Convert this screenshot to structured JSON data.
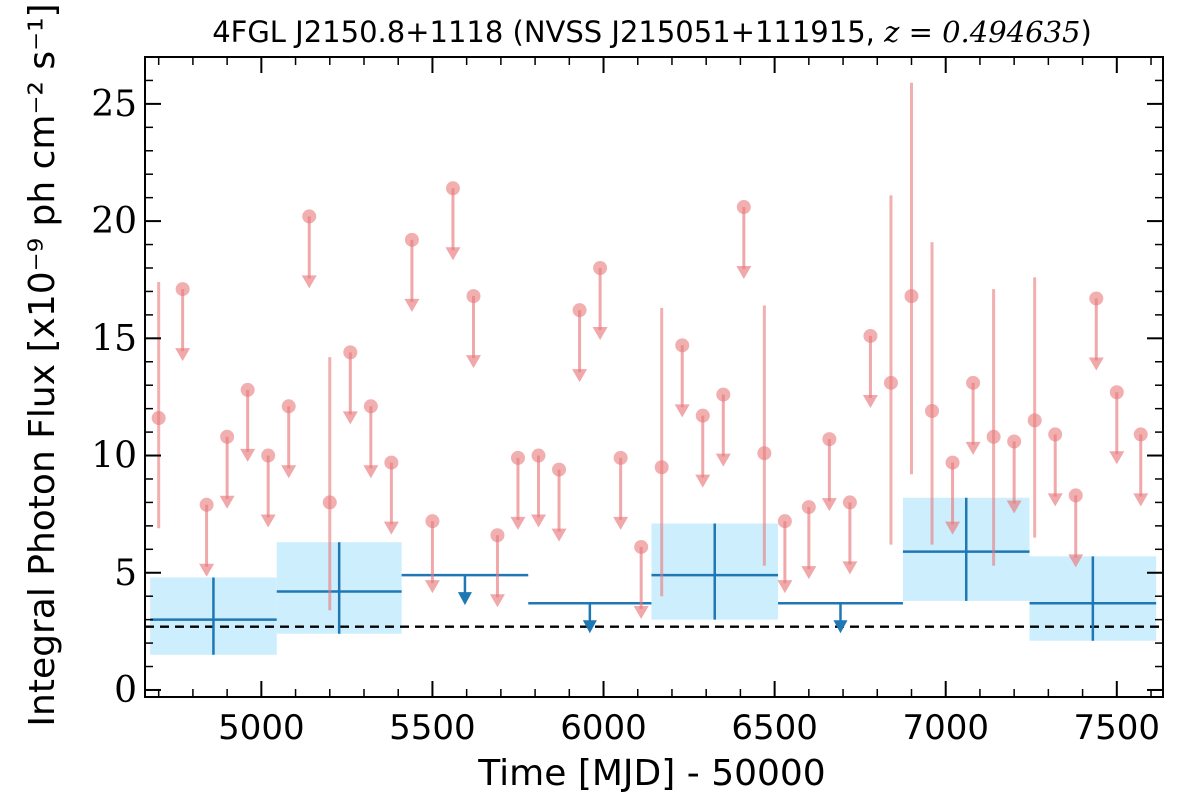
{
  "chart_data": {
    "type": "scatter",
    "title_main": "4FGL J2150.8+1118 (NVSS J215051+111915, ",
    "title_math": "z = 0.494635",
    "title_close": ")",
    "xlabel": "Time [MJD] - 50000",
    "ylabel": "Integral Photon Flux [x10⁻⁹ ph cm⁻² s⁻¹]",
    "xlim": [
      4660,
      7635
    ],
    "ylim": [
      -0.3,
      27
    ],
    "xticks": [
      5000,
      5500,
      6000,
      6500,
      7000,
      7500
    ],
    "yticks": [
      0,
      5,
      10,
      15,
      20,
      25
    ],
    "baseline_flux": 2.7,
    "colors": {
      "points": "#e8797c",
      "bins": "#1f77b4",
      "bin_error_box": "#cdeefc",
      "baseline": "#000000"
    },
    "points": [
      {
        "x": 4700,
        "y": 11.6,
        "ylo": 6.9,
        "yhi": 17.4
      },
      {
        "x": 4770,
        "y": 17.1,
        "upper_limit": true
      },
      {
        "x": 4840,
        "y": 7.9,
        "upper_limit": true
      },
      {
        "x": 4900,
        "y": 10.8,
        "upper_limit": true
      },
      {
        "x": 4960,
        "y": 12.8,
        "upper_limit": true
      },
      {
        "x": 5020,
        "y": 10.0,
        "upper_limit": true
      },
      {
        "x": 5080,
        "y": 12.1,
        "upper_limit": true
      },
      {
        "x": 5140,
        "y": 20.2,
        "upper_limit": true
      },
      {
        "x": 5200,
        "y": 8.0,
        "ylo": 3.4,
        "yhi": 14.2
      },
      {
        "x": 5260,
        "y": 14.4,
        "upper_limit": true
      },
      {
        "x": 5320,
        "y": 12.1,
        "upper_limit": true
      },
      {
        "x": 5380,
        "y": 9.7,
        "upper_limit": true
      },
      {
        "x": 5440,
        "y": 19.2,
        "upper_limit": true
      },
      {
        "x": 5500,
        "y": 7.2,
        "upper_limit": true
      },
      {
        "x": 5560,
        "y": 21.4,
        "upper_limit": true
      },
      {
        "x": 5620,
        "y": 16.8,
        "upper_limit": true
      },
      {
        "x": 5690,
        "y": 6.6,
        "upper_limit": true
      },
      {
        "x": 5750,
        "y": 9.9,
        "upper_limit": true
      },
      {
        "x": 5810,
        "y": 10.0,
        "upper_limit": true
      },
      {
        "x": 5870,
        "y": 9.4,
        "upper_limit": true
      },
      {
        "x": 5930,
        "y": 16.2,
        "upper_limit": true
      },
      {
        "x": 5990,
        "y": 18.0,
        "upper_limit": true
      },
      {
        "x": 6050,
        "y": 9.9,
        "upper_limit": true
      },
      {
        "x": 6110,
        "y": 6.1,
        "upper_limit": true
      },
      {
        "x": 6170,
        "y": 9.5,
        "ylo": 4.0,
        "yhi": 16.3
      },
      {
        "x": 6230,
        "y": 14.7,
        "upper_limit": true
      },
      {
        "x": 6290,
        "y": 11.7,
        "upper_limit": true
      },
      {
        "x": 6350,
        "y": 12.6,
        "upper_limit": true
      },
      {
        "x": 6410,
        "y": 20.6,
        "upper_limit": true
      },
      {
        "x": 6470,
        "y": 10.1,
        "ylo": 5.3,
        "yhi": 16.4
      },
      {
        "x": 6530,
        "y": 7.2,
        "upper_limit": true
      },
      {
        "x": 6600,
        "y": 7.8,
        "upper_limit": true
      },
      {
        "x": 6660,
        "y": 10.7,
        "upper_limit": true
      },
      {
        "x": 6720,
        "y": 8.0,
        "upper_limit": true
      },
      {
        "x": 6780,
        "y": 15.1,
        "upper_limit": true
      },
      {
        "x": 6840,
        "y": 13.1,
        "ylo": 6.2,
        "yhi": 21.1
      },
      {
        "x": 6900,
        "y": 16.8,
        "ylo": 9.2,
        "yhi": 25.9
      },
      {
        "x": 6960,
        "y": 11.9,
        "ylo": 6.2,
        "yhi": 19.1
      },
      {
        "x": 7020,
        "y": 9.7,
        "upper_limit": true
      },
      {
        "x": 7080,
        "y": 13.1,
        "upper_limit": true
      },
      {
        "x": 7140,
        "y": 10.8,
        "ylo": 5.3,
        "yhi": 17.1
      },
      {
        "x": 7200,
        "y": 10.6,
        "upper_limit": true
      },
      {
        "x": 7260,
        "y": 11.5,
        "ylo": 6.5,
        "yhi": 17.6
      },
      {
        "x": 7320,
        "y": 10.9,
        "upper_limit": true
      },
      {
        "x": 7380,
        "y": 8.3,
        "upper_limit": true
      },
      {
        "x": 7440,
        "y": 16.7,
        "upper_limit": true
      },
      {
        "x": 7500,
        "y": 12.7,
        "upper_limit": true
      },
      {
        "x": 7570,
        "y": 10.9,
        "upper_limit": true
      }
    ],
    "bins": [
      {
        "x0": 4675,
        "x1": 5045,
        "y": 3.0,
        "ylo": 1.5,
        "yhi": 4.8
      },
      {
        "x0": 5045,
        "x1": 5410,
        "y": 4.2,
        "ylo": 2.4,
        "yhi": 6.3
      },
      {
        "x0": 5410,
        "x1": 5780,
        "y": 4.9,
        "upper_limit": true
      },
      {
        "x0": 5780,
        "x1": 6140,
        "y": 3.7,
        "upper_limit": true
      },
      {
        "x0": 6140,
        "x1": 6510,
        "y": 4.9,
        "ylo": 3.0,
        "yhi": 7.1
      },
      {
        "x0": 6510,
        "x1": 6875,
        "y": 3.7,
        "upper_limit": true
      },
      {
        "x0": 6875,
        "x1": 7245,
        "y": 5.9,
        "ylo": 3.8,
        "yhi": 8.2
      },
      {
        "x0": 7245,
        "x1": 7615,
        "y": 3.7,
        "ylo": 2.1,
        "yhi": 5.7
      }
    ]
  }
}
